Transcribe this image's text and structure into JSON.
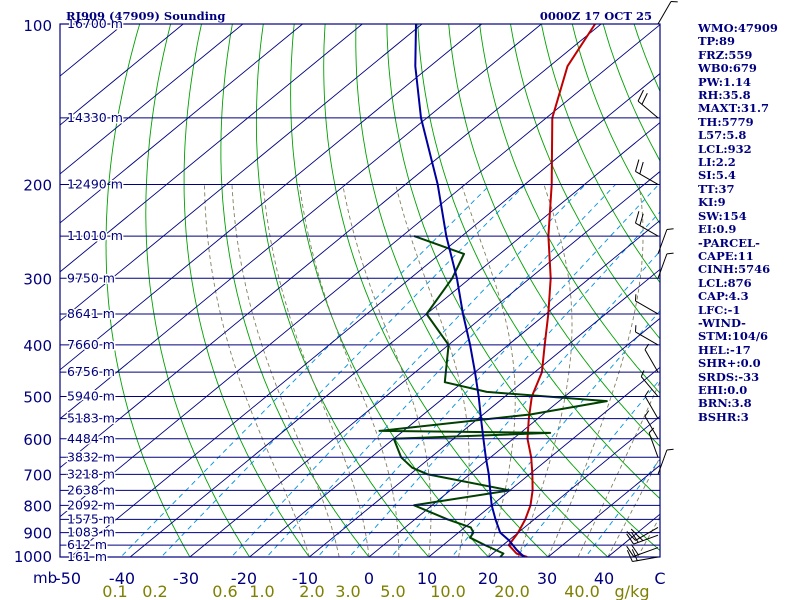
{
  "chart_data": {
    "type": "skew-t",
    "title": "RJ909 (47909) Sounding",
    "datetime": "0000Z 17 OCT 25",
    "pressure_unit_label": "mb",
    "mixing_ratio_unit_label": "g/kg",
    "ylim": [
      1000,
      100
    ],
    "xlim_temp_c_at_1000mb": [
      -50,
      50
    ],
    "pressure_ticks": [
      100,
      200,
      300,
      400,
      500,
      600,
      700,
      800,
      900,
      1000
    ],
    "pressure_tick_labels": [
      "100",
      "200",
      "300",
      "400",
      "500",
      "600",
      "700",
      "800",
      "900",
      "1000"
    ],
    "temp_ticks": [
      -40,
      -30,
      -20,
      -10,
      0,
      10,
      20,
      30,
      40
    ],
    "temp_tick_labels": [
      "-50",
      "-40",
      "-30",
      "-20",
      "-10",
      "0",
      "10",
      "20",
      "30",
      "40",
      "C"
    ],
    "mixing_ratio_tick_labels": [
      "0.1",
      "0.2",
      "0.6",
      "1.0",
      "2.0",
      "3.0",
      "5.0",
      "10.0",
      "20.0",
      "40.0"
    ],
    "mixing_ratio_values": [
      0.1,
      0.2,
      0.6,
      1.0,
      2.0,
      3.0,
      5.0,
      10.0,
      20.0,
      40.0
    ],
    "height_levels": [
      {
        "p": 100,
        "label": "16700 m"
      },
      {
        "p": 150,
        "label": "14330 m"
      },
      {
        "p": 200,
        "label": "12490 m"
      },
      {
        "p": 250,
        "label": "11010 m"
      },
      {
        "p": 300,
        "label": "9750 m"
      },
      {
        "p": 350,
        "label": "8641 m"
      },
      {
        "p": 400,
        "label": "7660 m"
      },
      {
        "p": 450,
        "label": "6756 m"
      },
      {
        "p": 500,
        "label": "5940 m"
      },
      {
        "p": 550,
        "label": "5183 m"
      },
      {
        "p": 600,
        "label": "4484 m"
      },
      {
        "p": 650,
        "label": "3832 m"
      },
      {
        "p": 700,
        "label": "3218 m"
      },
      {
        "p": 750,
        "label": "2638 m"
      },
      {
        "p": 800,
        "label": "2092 m"
      },
      {
        "p": 850,
        "label": "1575 m"
      },
      {
        "p": 900,
        "label": "1083 m"
      },
      {
        "p": 950,
        "label": "612 m"
      },
      {
        "p": 1000,
        "label": "161 m"
      }
    ],
    "series": [
      {
        "name": "temperature",
        "color": "#c00000",
        "points": [
          {
            "p": 1000,
            "t": 26.5
          },
          {
            "p": 985,
            "t": 24
          },
          {
            "p": 950,
            "t": 21
          },
          {
            "p": 900,
            "t": 20
          },
          {
            "p": 850,
            "t": 18.5
          },
          {
            "p": 800,
            "t": 16.5
          },
          {
            "p": 750,
            "t": 13.8
          },
          {
            "p": 700,
            "t": 10.5
          },
          {
            "p": 650,
            "t": 6.8
          },
          {
            "p": 600,
            "t": 2.4
          },
          {
            "p": 550,
            "t": -1.5
          },
          {
            "p": 500,
            "t": -5.5
          },
          {
            "p": 450,
            "t": -8.8
          },
          {
            "p": 400,
            "t": -13.9
          },
          {
            "p": 350,
            "t": -19.6
          },
          {
            "p": 300,
            "t": -26.5
          },
          {
            "p": 250,
            "t": -35.5
          },
          {
            "p": 200,
            "t": -45.5
          },
          {
            "p": 150,
            "t": -59
          },
          {
            "p": 120,
            "t": -67
          },
          {
            "p": 100,
            "t": -71
          }
        ]
      },
      {
        "name": "dewpoint",
        "color": "#004000",
        "points": [
          {
            "p": 1000,
            "t": 22
          },
          {
            "p": 985,
            "t": 21.8
          },
          {
            "p": 950,
            "t": 17
          },
          {
            "p": 920,
            "t": 13
          },
          {
            "p": 900,
            "t": 12.5
          },
          {
            "p": 880,
            "t": 11
          },
          {
            "p": 850,
            "t": 5.5
          },
          {
            "p": 800,
            "t": -3
          },
          {
            "p": 750,
            "t": 10
          },
          {
            "p": 700,
            "t": -7
          },
          {
            "p": 680,
            "t": -11
          },
          {
            "p": 650,
            "t": -15
          },
          {
            "p": 600,
            "t": -20
          },
          {
            "p": 585,
            "t": 5
          },
          {
            "p": 580,
            "t": -24
          },
          {
            "p": 540,
            "t": -2
          },
          {
            "p": 510,
            "t": 8
          },
          {
            "p": 490,
            "t": -14
          },
          {
            "p": 470,
            "t": -23
          },
          {
            "p": 400,
            "t": -30
          },
          {
            "p": 350,
            "t": -40
          },
          {
            "p": 300,
            "t": -43
          },
          {
            "p": 270,
            "t": -46
          },
          {
            "p": 250,
            "t": -58
          }
        ]
      },
      {
        "name": "parcel",
        "color": "#0000a0",
        "points": [
          {
            "p": 1000,
            "t": 26
          },
          {
            "p": 970,
            "t": 23.3
          },
          {
            "p": 930,
            "t": 20
          },
          {
            "p": 900,
            "t": 17
          },
          {
            "p": 850,
            "t": 13.5
          },
          {
            "p": 800,
            "t": 10
          },
          {
            "p": 750,
            "t": 6.7
          },
          {
            "p": 700,
            "t": 3.2
          },
          {
            "p": 650,
            "t": -0.8
          },
          {
            "p": 600,
            "t": -5
          },
          {
            "p": 550,
            "t": -9.5
          },
          {
            "p": 500,
            "t": -14.4
          },
          {
            "p": 450,
            "t": -20
          },
          {
            "p": 400,
            "t": -26.4
          },
          {
            "p": 350,
            "t": -33.9
          },
          {
            "p": 300,
            "t": -42.2
          },
          {
            "p": 250,
            "t": -52.6
          },
          {
            "p": 200,
            "t": -64.6
          },
          {
            "p": 150,
            "t": -81
          },
          {
            "p": 120,
            "t": -92.5
          },
          {
            "p": 100,
            "t": -101
          }
        ]
      }
    ],
    "wind_barbs": [
      {
        "p": 1000,
        "dir": 260,
        "spd": 20
      },
      {
        "p": 960,
        "dir": 250,
        "spd": 20
      },
      {
        "p": 910,
        "dir": 250,
        "spd": 25
      },
      {
        "p": 880,
        "dir": 240,
        "spd": 20
      },
      {
        "p": 700,
        "dir": 20,
        "spd": 5
      },
      {
        "p": 650,
        "dir": 340,
        "spd": 5
      },
      {
        "p": 600,
        "dir": 330,
        "spd": 5
      },
      {
        "p": 550,
        "dir": 330,
        "spd": 5
      },
      {
        "p": 500,
        "dir": 320,
        "spd": 5
      },
      {
        "p": 450,
        "dir": 330,
        "spd": 5
      },
      {
        "p": 400,
        "dir": 300,
        "spd": 5
      },
      {
        "p": 350,
        "dir": 300,
        "spd": 5
      },
      {
        "p": 300,
        "dir": 20,
        "spd": 5
      },
      {
        "p": 270,
        "dir": 20,
        "spd": 5
      },
      {
        "p": 250,
        "dir": 300,
        "spd": 20
      },
      {
        "p": 200,
        "dir": 300,
        "spd": 20
      },
      {
        "p": 150,
        "dir": 310,
        "spd": 20
      },
      {
        "p": 100,
        "dir": 30,
        "spd": 5
      }
    ],
    "indices": [
      "WMO:47909",
      "TP:89",
      "FRZ:559",
      "WB0:679",
      "PW:1.14",
      "RH:35.8",
      "MAXT:31.7",
      "TH:5779",
      "L57:5.8",
      "LCL:932",
      "LI:2.2",
      "SI:5.4",
      "TT:37",
      "KI:9",
      "SW:154",
      "EI:0.9",
      "-PARCEL-",
      "CAPE:11",
      "CINH:5746",
      "LCL:876",
      "CAP:4.3",
      "LFC:-1",
      "-WIND-",
      "STM:104/6",
      "HEL:-17",
      "SHR+:0.0",
      "SRDS:-33",
      "EHI:0.0",
      "BRN:3.8",
      "BSHR:3"
    ]
  },
  "colors": {
    "frame": "#00007f",
    "isobar": "#00007f",
    "isotherm": "#00007f",
    "dry_adiabat": "#00a000",
    "moist_adiabat": "#808060",
    "mixing_ratio": "#0090e0",
    "bottom_axis_text": "#7f7f00",
    "title_text": "#00007f",
    "pressure_label": "#00007f"
  }
}
